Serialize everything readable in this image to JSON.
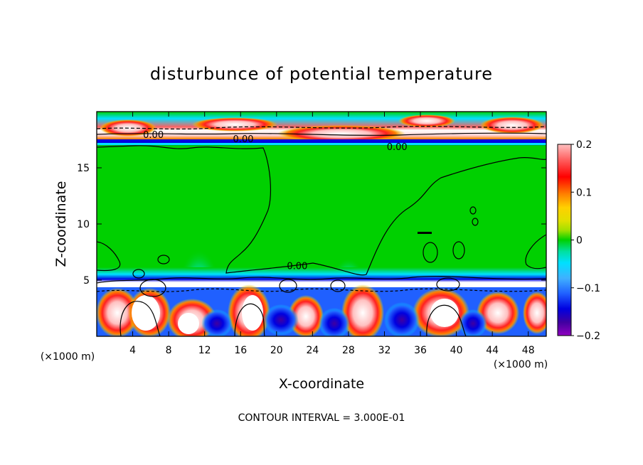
{
  "chart_data": {
    "type": "heatmap",
    "title": "disturbunce of potential temperature",
    "xlabel": "X-coordinate",
    "ylabel": "Z-coordinate",
    "x_unit": "(×1000 m)",
    "x_unit_right": "(×1000 m)",
    "xlim": [
      0,
      50
    ],
    "ylim": [
      0,
      20
    ],
    "x_ticks": [
      4,
      8,
      12,
      16,
      20,
      24,
      28,
      32,
      36,
      40,
      44,
      48
    ],
    "y_ticks": [
      5,
      10,
      15
    ],
    "colorbar": {
      "min": -0.2,
      "max": 0.2,
      "ticks": [
        "0.2",
        "0.1",
        "0",
        "−0.1",
        "−0.2"
      ],
      "colors": [
        "#ffc0c0",
        "#ff6060",
        "#ff0000",
        "#ff8000",
        "#ffd000",
        "#e0e000",
        "#a0e000",
        "#40d040",
        "#00d000",
        "#00e0a0",
        "#00e0ff",
        "#40b0ff",
        "#2060ff",
        "#0000e0",
        "#4000a0",
        "#9000c0"
      ]
    },
    "contour_labels": [
      {
        "text": "0.00",
        "x": 6.3,
        "z": 17.8
      },
      {
        "text": "0.00",
        "x": 16.3,
        "z": 17.4
      },
      {
        "text": "0.00",
        "x": 33.4,
        "z": 16.7
      },
      {
        "text": "0.00",
        "x": 22.3,
        "z": 6.1
      }
    ],
    "contour_interval_label": "CONTOUR INTERVAL = 3.000E-01"
  }
}
